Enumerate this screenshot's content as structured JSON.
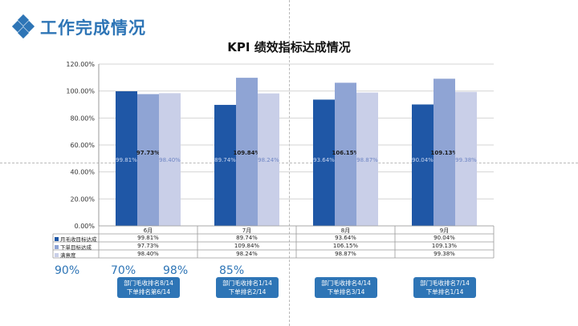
{
  "header": {
    "title": "工作完成情况",
    "accent": "#2e75b6"
  },
  "chart_data": {
    "type": "bar",
    "title": "KPI 绩效指标达成情况",
    "categories": [
      "6月",
      "7月",
      "8月",
      "9月"
    ],
    "ylim": [
      0,
      120
    ],
    "yticks": [
      "0.00%",
      "20.00%",
      "40.00%",
      "60.00%",
      "80.00%",
      "100.00%",
      "120.00%"
    ],
    "grid": true,
    "legend": "table-left",
    "series": [
      {
        "name": "月毛收目标达成",
        "color": "#1f57a6",
        "values": [
          99.81,
          89.74,
          93.64,
          90.04
        ],
        "labels": [
          "99.81%",
          "89.74%",
          "93.64%",
          "90.04%"
        ]
      },
      {
        "name": "下单目标达成",
        "color": "#8fa4d4",
        "values": [
          97.73,
          109.84,
          106.15,
          109.13
        ],
        "labels": [
          "97.73%",
          "109.84%",
          "106.15%",
          "109.13%"
        ]
      },
      {
        "name": "满意度",
        "color": "#c9cfe8",
        "values": [
          98.4,
          98.24,
          98.87,
          99.38
        ],
        "labels": [
          "98.40%",
          "98.24%",
          "98.87%",
          "99.38%"
        ]
      }
    ]
  },
  "targets": [
    "90%",
    "70%",
    "98%",
    "85%"
  ],
  "rankings": [
    {
      "line1": "部门毛收排名8/14",
      "line2": "下单排名第6/14"
    },
    {
      "line1": "部门毛收排名1/14",
      "line2": "下单排名2/14"
    },
    {
      "line1": "部门毛收排名4/14",
      "line2": "下单排名3/14"
    },
    {
      "line1": "部门毛收排名7/14",
      "line2": "下单排名1/14"
    }
  ]
}
